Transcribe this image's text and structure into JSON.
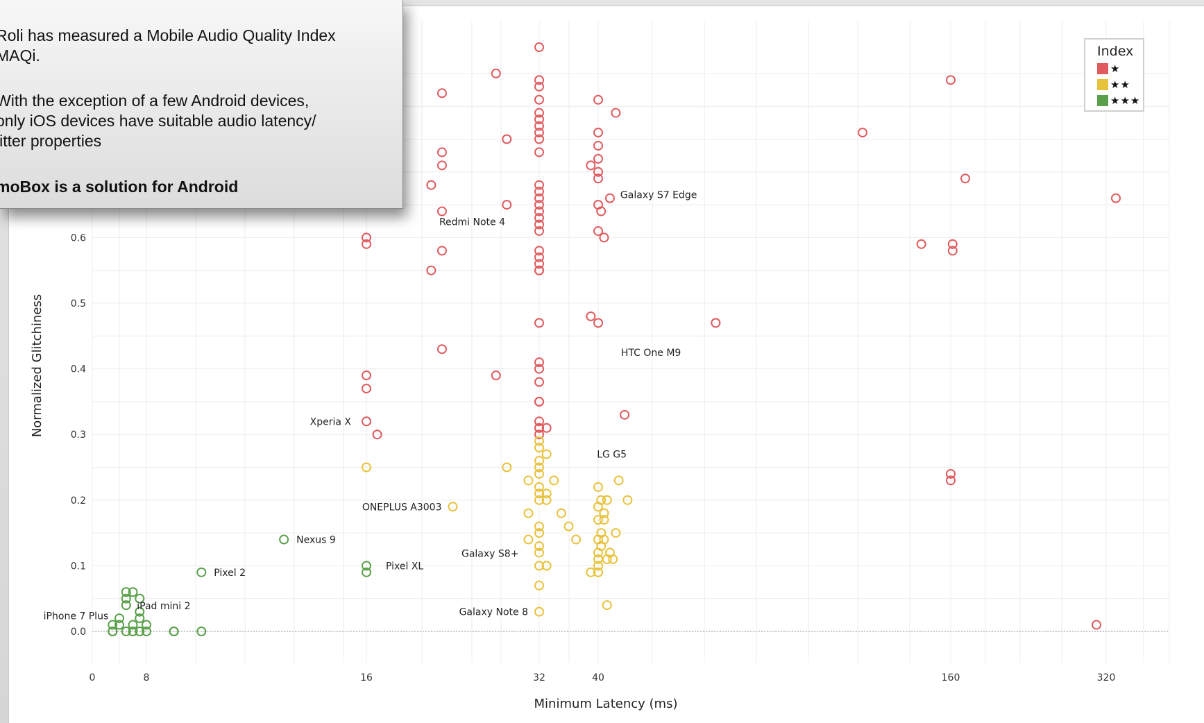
{
  "callout": {
    "line1": "Roli has measured a Mobile Audio Quality Index",
    "line2": "MAQi.",
    "line3": "With the exception of a few Android devices,",
    "line4": "only iOS devices have suitable audio latency/",
    "line5": "jitter properties",
    "line6": "moBox is a solution for Android"
  },
  "legend": {
    "title": "Index",
    "items": [
      {
        "label": "★",
        "color": "#e05a5e"
      },
      {
        "label": "★★",
        "color": "#e8c23c"
      },
      {
        "label": "★★★",
        "color": "#5aa04a"
      }
    ]
  },
  "chart_data": {
    "type": "scatter",
    "xlabel": "Minimum Latency (ms)",
    "ylabel": "Normalized Glitchiness",
    "x_ticks": [
      "0",
      "8",
      "16",
      "32",
      "40",
      "160",
      "320"
    ],
    "y_ticks": [
      "0.0",
      "0.1",
      "0.2",
      "0.3",
      "0.4",
      "0.5",
      "0.6"
    ],
    "grid": true,
    "legend_position": "top-right",
    "series": [
      {
        "name": "★",
        "color": "#e05a5e",
        "points": [
          [
            32,
            0.89
          ],
          [
            28,
            0.85
          ],
          [
            32,
            0.84
          ],
          [
            32,
            0.83
          ],
          [
            23,
            0.82
          ],
          [
            32,
            0.81
          ],
          [
            40,
            0.81
          ],
          [
            46,
            0.79
          ],
          [
            32,
            0.79
          ],
          [
            32,
            0.78
          ],
          [
            32,
            0.77
          ],
          [
            32,
            0.76
          ],
          [
            40,
            0.76
          ],
          [
            29,
            0.75
          ],
          [
            32,
            0.75
          ],
          [
            40,
            0.74
          ],
          [
            32,
            0.73
          ],
          [
            23,
            0.73
          ],
          [
            40,
            0.72
          ],
          [
            23,
            0.71
          ],
          [
            39,
            0.71
          ],
          [
            40,
            0.7
          ],
          [
            40,
            0.69
          ],
          [
            22,
            0.68
          ],
          [
            32,
            0.68
          ],
          [
            32,
            0.67
          ],
          [
            32,
            0.66
          ],
          [
            44,
            0.66
          ],
          [
            32,
            0.65
          ],
          [
            29,
            0.65
          ],
          [
            40,
            0.65
          ],
          [
            32,
            0.64
          ],
          [
            23,
            0.64
          ],
          [
            41,
            0.64
          ],
          [
            32,
            0.63
          ],
          [
            32,
            0.62
          ],
          [
            40,
            0.61
          ],
          [
            32,
            0.61
          ],
          [
            42,
            0.6
          ],
          [
            16,
            0.6
          ],
          [
            16,
            0.59
          ],
          [
            23,
            0.58
          ],
          [
            32,
            0.58
          ],
          [
            32,
            0.57
          ],
          [
            32,
            0.56
          ],
          [
            22,
            0.55
          ],
          [
            32,
            0.55
          ],
          [
            32,
            0.55
          ],
          [
            39,
            0.48
          ],
          [
            32,
            0.47
          ],
          [
            40,
            0.47
          ],
          [
            23,
            0.43
          ],
          [
            32,
            0.41
          ],
          [
            32,
            0.4
          ],
          [
            28,
            0.39
          ],
          [
            16,
            0.39
          ],
          [
            32,
            0.38
          ],
          [
            16,
            0.37
          ],
          [
            32,
            0.35
          ],
          [
            32,
            0.35
          ],
          [
            49,
            0.33
          ],
          [
            32,
            0.32
          ],
          [
            16,
            0.32
          ],
          [
            32,
            0.31
          ],
          [
            32,
            0.31
          ],
          [
            33,
            0.31
          ],
          [
            32,
            0.3
          ],
          [
            17,
            0.3
          ],
          [
            160,
            0.84
          ],
          [
            130,
            0.76
          ],
          [
            175,
            0.69
          ],
          [
            330,
            0.66
          ],
          [
            80,
            0.47
          ],
          [
            150,
            0.59
          ],
          [
            162,
            0.59
          ],
          [
            162,
            0.58
          ],
          [
            160,
            0.24
          ],
          [
            160,
            0.23
          ],
          [
            310,
            0.01
          ]
        ]
      },
      {
        "name": "★★",
        "color": "#e8c23c",
        "points": [
          [
            16,
            0.25
          ],
          [
            32,
            0.29
          ],
          [
            32,
            0.28
          ],
          [
            33,
            0.27
          ],
          [
            32,
            0.26
          ],
          [
            32,
            0.25
          ],
          [
            29,
            0.25
          ],
          [
            32,
            0.24
          ],
          [
            34,
            0.23
          ],
          [
            31,
            0.23
          ],
          [
            32,
            0.22
          ],
          [
            40,
            0.22
          ],
          [
            32,
            0.21
          ],
          [
            33,
            0.21
          ],
          [
            32,
            0.2
          ],
          [
            33,
            0.2
          ],
          [
            41,
            0.2
          ],
          [
            43,
            0.2
          ],
          [
            47,
            0.23
          ],
          [
            50,
            0.2
          ],
          [
            40,
            0.19
          ],
          [
            24,
            0.19
          ],
          [
            42,
            0.18
          ],
          [
            31,
            0.18
          ],
          [
            35,
            0.18
          ],
          [
            40,
            0.17
          ],
          [
            42,
            0.17
          ],
          [
            32,
            0.16
          ],
          [
            36,
            0.16
          ],
          [
            32,
            0.15
          ],
          [
            41,
            0.15
          ],
          [
            46,
            0.15
          ],
          [
            37,
            0.14
          ],
          [
            40,
            0.14
          ],
          [
            42,
            0.14
          ],
          [
            31,
            0.14
          ],
          [
            32,
            0.13
          ],
          [
            41,
            0.13
          ],
          [
            40,
            0.12
          ],
          [
            32,
            0.12
          ],
          [
            44,
            0.12
          ],
          [
            40,
            0.11
          ],
          [
            32,
            0.1
          ],
          [
            43,
            0.11
          ],
          [
            33,
            0.1
          ],
          [
            40,
            0.1
          ],
          [
            45,
            0.11
          ],
          [
            39,
            0.09
          ],
          [
            40,
            0.09
          ],
          [
            40,
            0.09
          ],
          [
            32,
            0.07
          ],
          [
            43,
            0.04
          ],
          [
            32,
            0.03
          ]
        ]
      },
      {
        "name": "★★★",
        "color": "#5aa04a",
        "points": [
          [
            13,
            0.14
          ],
          [
            10,
            0.09
          ],
          [
            16,
            0.1
          ],
          [
            16,
            0.09
          ],
          [
            6,
            0.06
          ],
          [
            5,
            0.06
          ],
          [
            7,
            0.05
          ],
          [
            5,
            0.05
          ],
          [
            5,
            0.04
          ],
          [
            7,
            0.03
          ],
          [
            4,
            0.02
          ],
          [
            3,
            0.01
          ],
          [
            7,
            0.02
          ],
          [
            6,
            0.01
          ],
          [
            4,
            0.01
          ],
          [
            8,
            0.01
          ],
          [
            3,
            0.0
          ],
          [
            3,
            0.0
          ],
          [
            5,
            0.0
          ],
          [
            6,
            0.0
          ],
          [
            7,
            0.0
          ],
          [
            8,
            0.0
          ],
          [
            9,
            0.0
          ],
          [
            9,
            0.0
          ],
          [
            10,
            0.0
          ]
        ]
      }
    ],
    "annotations": [
      {
        "text": "Galaxy S7 Edge",
        "x": 44,
        "y": 0.66
      },
      {
        "text": "Redmi Note 4",
        "x": 23,
        "y": 0.64
      },
      {
        "text": "HTC One M9",
        "x": 80,
        "y": 0.43
      },
      {
        "text": "Xperia X",
        "x": 16,
        "y": 0.32
      },
      {
        "text": "LG G5",
        "x": 47,
        "y": 0.25
      },
      {
        "text": "ONEPLUS A3003",
        "x": 24,
        "y": 0.19
      },
      {
        "text": "Nexus 9",
        "x": 13,
        "y": 0.14
      },
      {
        "text": "Galaxy S8+",
        "x": 31,
        "y": 0.12
      },
      {
        "text": "Pixel XL",
        "x": 16,
        "y": 0.1
      },
      {
        "text": "Pixel 2",
        "x": 10,
        "y": 0.09
      },
      {
        "text": "iPad mini 2",
        "x": 7,
        "y": 0.04
      },
      {
        "text": "iPhone 7 Plus",
        "x": 3,
        "y": 0.01
      },
      {
        "text": "Galaxy Note 8",
        "x": 32,
        "y": 0.03
      }
    ]
  }
}
